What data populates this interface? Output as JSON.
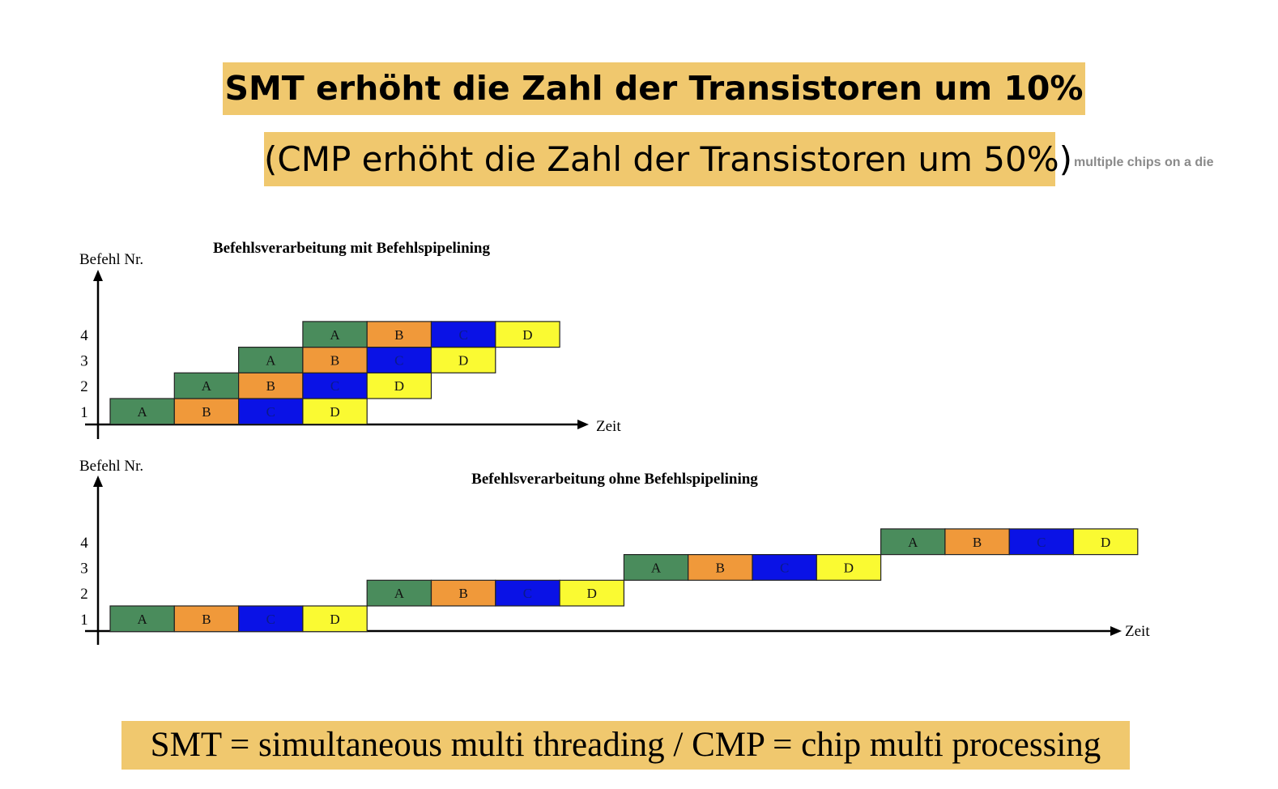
{
  "slide": {
    "title": "SMT erhöht die Zahl der Transistoren um 10%",
    "subtitle": "(CMP erhöht die Zahl der Transistoren um 50%)",
    "side_note": "multiple chips on a die",
    "footer": "SMT = simultaneous multi threading / CMP = chip multi processing",
    "highlight_color": "#f0c86e"
  },
  "stage_colors": {
    "A": "#4a8c5c",
    "B": "#f0993a",
    "C": "#0a12e6",
    "D": "#fafa32"
  },
  "diagrams": [
    {
      "id": "pipelined",
      "title": "Befehlsverarbeitung mit Befehlspipelining",
      "ylabel": "Befehl Nr.",
      "xlabel": "Zeit",
      "rows": [
        "1",
        "2",
        "3",
        "4"
      ],
      "stages": [
        "A",
        "B",
        "C",
        "D"
      ],
      "start_slots": [
        0,
        1,
        2,
        3
      ]
    },
    {
      "id": "sequential",
      "title": "Befehlsverarbeitung ohne Befehlspipelining",
      "ylabel": "Befehl Nr.",
      "xlabel": "Zeit",
      "rows": [
        "1",
        "2",
        "3",
        "4"
      ],
      "stages": [
        "A",
        "B",
        "C",
        "D"
      ],
      "start_slots": [
        0,
        4,
        8,
        12
      ]
    }
  ]
}
